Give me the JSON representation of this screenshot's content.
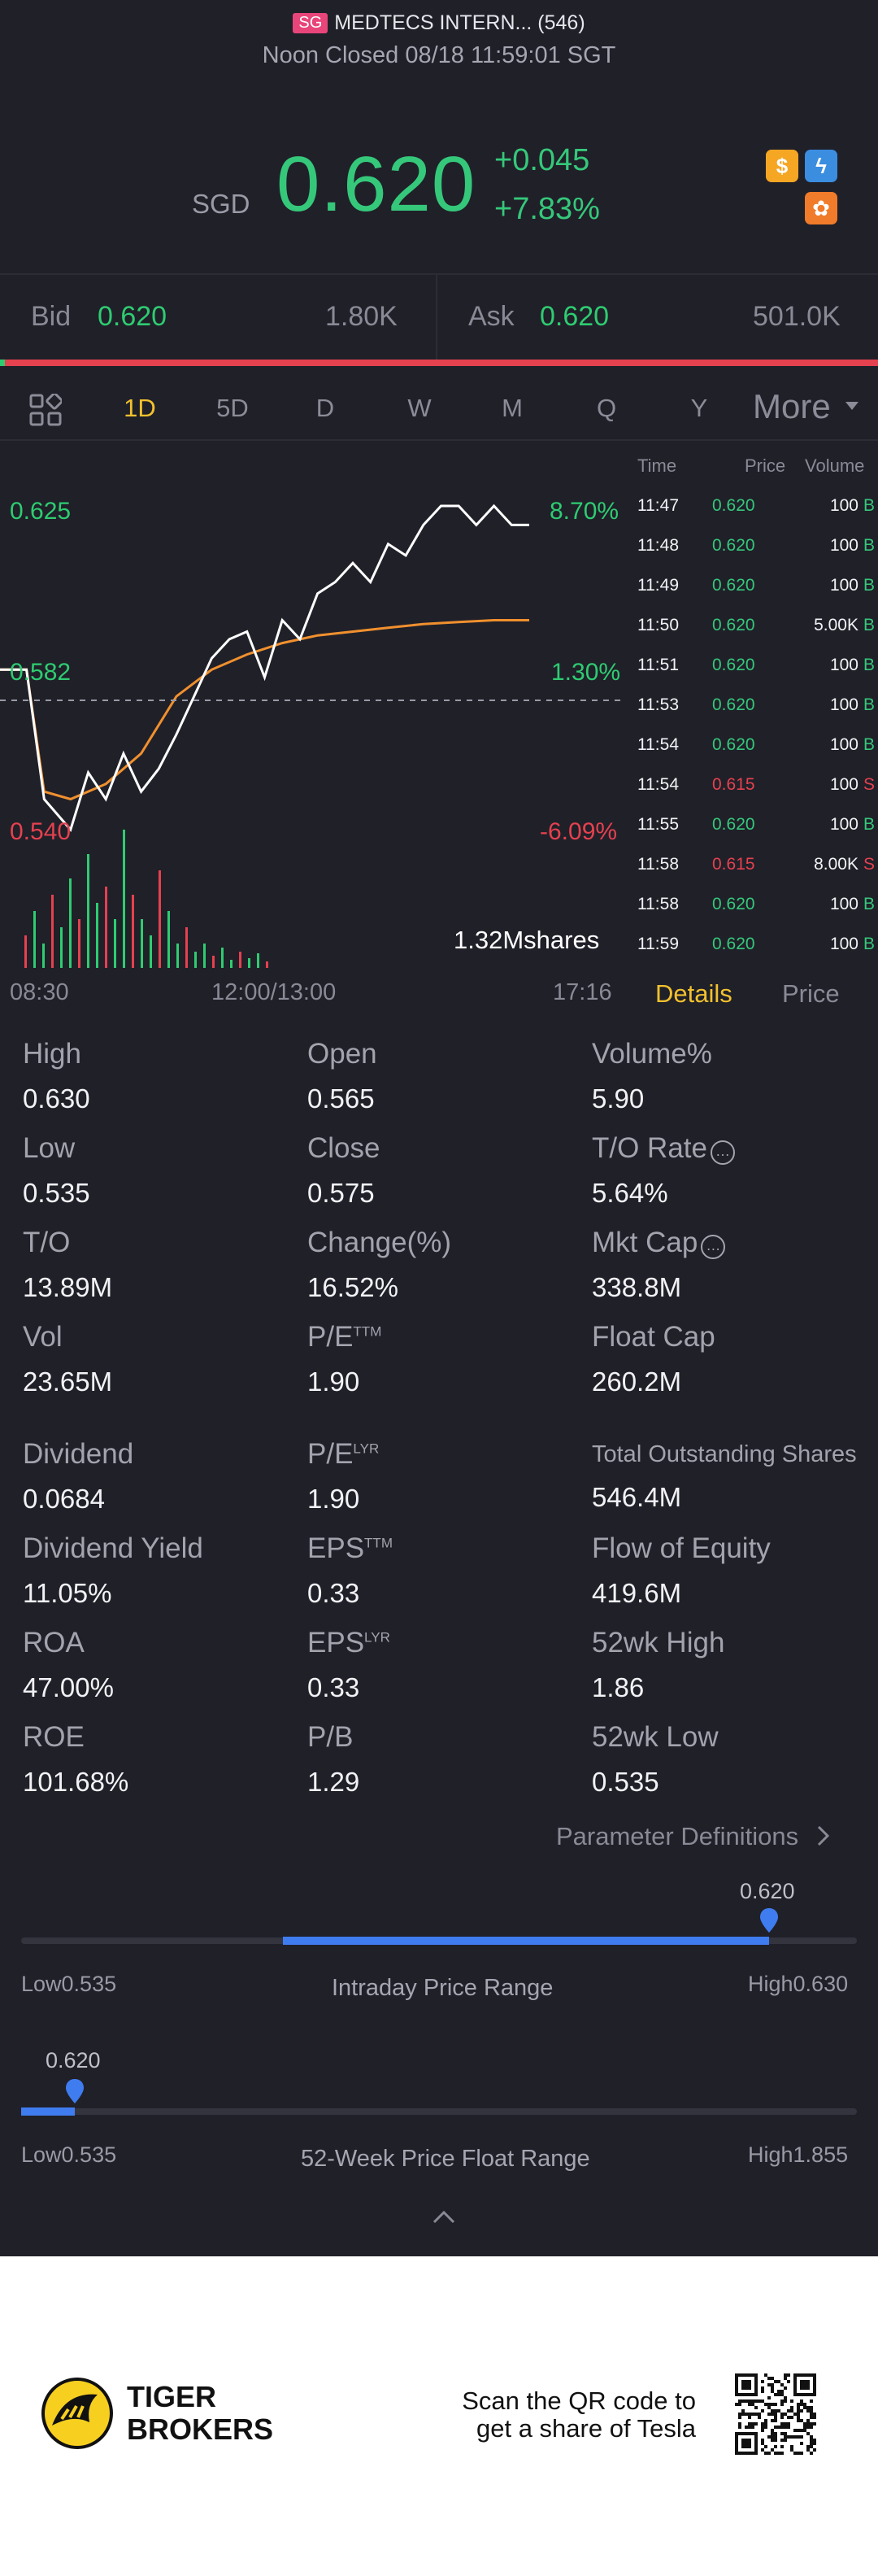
{
  "header": {
    "region_badge": "SG",
    "ticker_name": "MEDTECS INTERN... (546)",
    "session_status": "Noon Closed 08/18 11:59:01 SGT",
    "currency": "SGD",
    "last_price": "0.620",
    "change_abs": "+0.045",
    "change_pct": "+7.83%",
    "flags": {
      "dollar": "$",
      "bolt": "ϟ",
      "orange": "✿"
    }
  },
  "bid_ask": {
    "bid_label": "Bid",
    "bid_price": "0.620",
    "bid_size": "1.80K",
    "ask_label": "Ask",
    "ask_price": "0.620",
    "ask_size": "501.0K"
  },
  "period_tabs": [
    "1D",
    "5D",
    "D",
    "W",
    "M",
    "Q",
    "Y"
  ],
  "period_more": "More",
  "chart": {
    "y_high": "0.625",
    "y_mid": "0.582",
    "y_low": "0.540",
    "pct_high": "8.70%",
    "pct_mid": "1.30%",
    "pct_low": "-6.09%",
    "volume_label": "1.32Mshares",
    "time_start": "08:30",
    "time_mid": "12:00/13:00",
    "time_end": "17:16"
  },
  "chart_data": {
    "type": "line",
    "x_label": "",
    "series": [],
    "price_points": [
      [
        0,
        0.582
      ],
      [
        3,
        0.582
      ],
      [
        5,
        0.548
      ],
      [
        8,
        0.54
      ],
      [
        10,
        0.555
      ],
      [
        12,
        0.548
      ],
      [
        14,
        0.56
      ],
      [
        16,
        0.55
      ],
      [
        18,
        0.556
      ],
      [
        20,
        0.565
      ],
      [
        22,
        0.575
      ],
      [
        24,
        0.585
      ],
      [
        26,
        0.59
      ],
      [
        28,
        0.592
      ],
      [
        30,
        0.58
      ],
      [
        32,
        0.595
      ],
      [
        34,
        0.59
      ],
      [
        36,
        0.602
      ],
      [
        38,
        0.605
      ],
      [
        40,
        0.61
      ],
      [
        42,
        0.605
      ],
      [
        44,
        0.615
      ],
      [
        46,
        0.612
      ],
      [
        48,
        0.62
      ],
      [
        50,
        0.625
      ],
      [
        52,
        0.625
      ],
      [
        54,
        0.62
      ],
      [
        56,
        0.625
      ],
      [
        58,
        0.62
      ],
      [
        60,
        0.62
      ]
    ],
    "avg_points": [
      [
        0,
        0.582
      ],
      [
        3,
        0.582
      ],
      [
        5,
        0.55
      ],
      [
        8,
        0.548
      ],
      [
        12,
        0.552
      ],
      [
        16,
        0.56
      ],
      [
        20,
        0.575
      ],
      [
        24,
        0.582
      ],
      [
        28,
        0.586
      ],
      [
        32,
        0.589
      ],
      [
        36,
        0.591
      ],
      [
        40,
        0.592
      ],
      [
        44,
        0.593
      ],
      [
        48,
        0.594
      ],
      [
        52,
        0.5945
      ],
      [
        56,
        0.595
      ],
      [
        60,
        0.595
      ]
    ],
    "prev_close": 0.575,
    "ylim": [
      0.54,
      0.625
    ]
  },
  "time_sales": {
    "headers": [
      "Time",
      "Price",
      "Volume"
    ],
    "rows": [
      {
        "time": "11:47",
        "price": "0.620",
        "volume": "100",
        "side": "B"
      },
      {
        "time": "11:48",
        "price": "0.620",
        "volume": "100",
        "side": "B"
      },
      {
        "time": "11:49",
        "price": "0.620",
        "volume": "100",
        "side": "B"
      },
      {
        "time": "11:50",
        "price": "0.620",
        "volume": "5.00K",
        "side": "B"
      },
      {
        "time": "11:51",
        "price": "0.620",
        "volume": "100",
        "side": "B"
      },
      {
        "time": "11:53",
        "price": "0.620",
        "volume": "100",
        "side": "B"
      },
      {
        "time": "11:54",
        "price": "0.620",
        "volume": "100",
        "side": "B"
      },
      {
        "time": "11:54",
        "price": "0.615",
        "volume": "100",
        "side": "S"
      },
      {
        "time": "11:55",
        "price": "0.620",
        "volume": "100",
        "side": "B"
      },
      {
        "time": "11:58",
        "price": "0.615",
        "volume": "8.00K",
        "side": "S"
      },
      {
        "time": "11:58",
        "price": "0.620",
        "volume": "100",
        "side": "B"
      },
      {
        "time": "11:59",
        "price": "0.620",
        "volume": "100",
        "side": "B"
      }
    ],
    "tab_details": "Details",
    "tab_price": "Price"
  },
  "stats": {
    "high_label": "High",
    "high": "0.630",
    "open_label": "Open",
    "open": "0.565",
    "volpct_label": "Volume%",
    "volpct": "5.90",
    "low_label": "Low",
    "low": "0.535",
    "close_label": "Close",
    "close": "0.575",
    "torate_label": "T/O Rate",
    "torate": "5.64%",
    "to_label": "T/O",
    "to": "13.89M",
    "changepct_label": "Change(%)",
    "changepct": "16.52%",
    "mktcap_label": "Mkt Cap",
    "mktcap": "338.8M",
    "vol_label": "Vol",
    "vol": "23.65M",
    "pe_ttm_label": "P/E",
    "pe_ttm_sup": "TTM",
    "pe_ttm": "1.90",
    "floatcap_label": "Float Cap",
    "floatcap": "260.2M",
    "dividend_label": "Dividend",
    "dividend": "0.0684",
    "pe_lyr_label": "P/E",
    "pe_lyr_sup": "LYR",
    "pe_lyr": "1.90",
    "tos_label": "Total Outstanding Shares",
    "tos": "546.4M",
    "divyield_label": "Dividend Yield",
    "divyield": "11.05%",
    "eps_ttm_label": "EPS",
    "eps_ttm_sup": "TTM",
    "eps_ttm": "0.33",
    "flow_label": "Flow of Equity",
    "flow": "419.6M",
    "roa_label": "ROA",
    "roa": "47.00%",
    "eps_lyr_label": "EPS",
    "eps_lyr_sup": "LYR",
    "eps_lyr": "0.33",
    "wk52high_label": "52wk High",
    "wk52high": "1.86",
    "roe_label": "ROE",
    "roe": "101.68%",
    "pb_label": "P/B",
    "pb": "1.29",
    "wk52low_label": "52wk Low",
    "wk52low": "0.535",
    "info_icon": "…",
    "param_def": "Parameter Definitions"
  },
  "intraday_range": {
    "current": "0.620",
    "low_label": "Low",
    "low": "0.535",
    "high_label": "High",
    "high": "0.630",
    "title": "Intraday Price Range",
    "position": 0.895
  },
  "week52_range": {
    "current": "0.620",
    "low_label": "Low",
    "low": "0.535",
    "high_label": "High",
    "high": "1.855",
    "title": "52-Week Price Float Range",
    "position": 0.064
  },
  "footer": {
    "brand_line1": "TIGER",
    "brand_line2": "BROKERS",
    "promo_line1": "Scan the QR code to",
    "promo_line2": "get a share of Tesla"
  },
  "colors": {
    "up": "#35c87a",
    "down": "#e5414f",
    "avg": "#f0902e",
    "accent": "#f2c12e",
    "range_fill": "#3f7cf0"
  }
}
